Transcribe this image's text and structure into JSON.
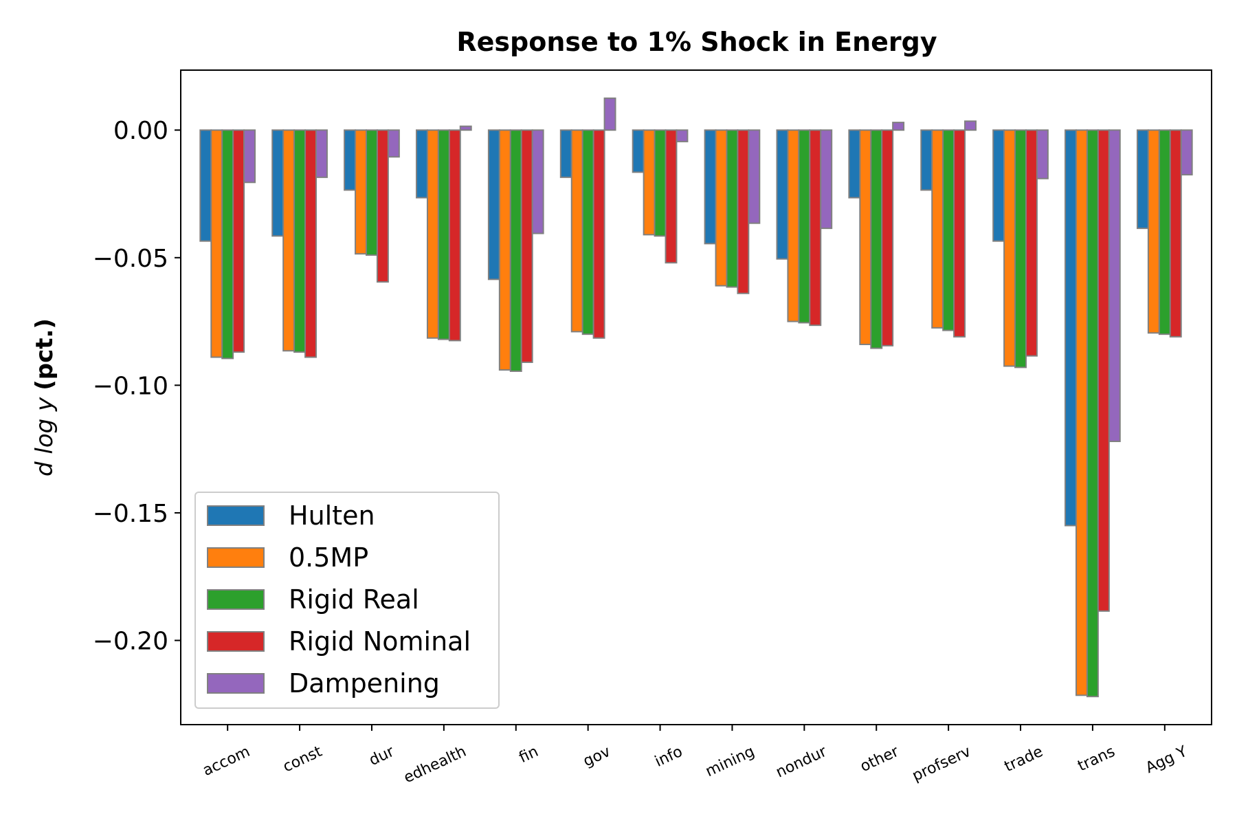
{
  "chart_data": {
    "type": "bar",
    "title": "Response to 1% Shock in Energy",
    "ylabel_italic": "d log y",
    "ylabel_bold": "(pct.)",
    "xlabel": "",
    "ylim": [
      -0.233,
      0.0235
    ],
    "yticks": [
      0.0,
      -0.05,
      -0.1,
      -0.15,
      -0.2
    ],
    "ytick_labels": [
      "0.00",
      "−0.05",
      "−0.10",
      "−0.15",
      "−0.20"
    ],
    "grid": false,
    "legend_position": "lower-left",
    "categories": [
      "accom",
      "const",
      "dur",
      "edhealth",
      "fin",
      "gov",
      "info",
      "mining",
      "nondur",
      "other",
      "profserv",
      "trade",
      "trans",
      "Agg Y"
    ],
    "series": [
      {
        "name": "Hulten",
        "color": "#1f77b4",
        "values": [
          -0.0435,
          -0.0415,
          -0.0235,
          -0.0265,
          -0.0585,
          -0.0185,
          -0.0165,
          -0.0445,
          -0.0505,
          -0.0265,
          -0.0235,
          -0.0435,
          -0.155,
          -0.0385
        ]
      },
      {
        "name": "0.5MP",
        "color": "#ff7f0e",
        "values": [
          -0.089,
          -0.0865,
          -0.0485,
          -0.0815,
          -0.094,
          -0.079,
          -0.041,
          -0.061,
          -0.075,
          -0.084,
          -0.0775,
          -0.0925,
          -0.2215,
          -0.0795
        ]
      },
      {
        "name": "Rigid Real",
        "color": "#2ca02c",
        "values": [
          -0.0895,
          -0.087,
          -0.049,
          -0.082,
          -0.0945,
          -0.08,
          -0.0415,
          -0.0615,
          -0.0755,
          -0.0855,
          -0.0785,
          -0.093,
          -0.222,
          -0.08
        ]
      },
      {
        "name": "Rigid Nominal",
        "color": "#d62728",
        "values": [
          -0.087,
          -0.089,
          -0.0595,
          -0.0825,
          -0.091,
          -0.0815,
          -0.052,
          -0.064,
          -0.0765,
          -0.0845,
          -0.081,
          -0.0885,
          -0.1885,
          -0.081
        ]
      },
      {
        "name": "Dampening",
        "color": "#9467bd",
        "values": [
          -0.0205,
          -0.0185,
          -0.0105,
          0.0015,
          -0.0405,
          0.0125,
          -0.0045,
          -0.0365,
          -0.0385,
          0.003,
          0.0035,
          -0.019,
          -0.122,
          -0.0175
        ]
      }
    ]
  }
}
